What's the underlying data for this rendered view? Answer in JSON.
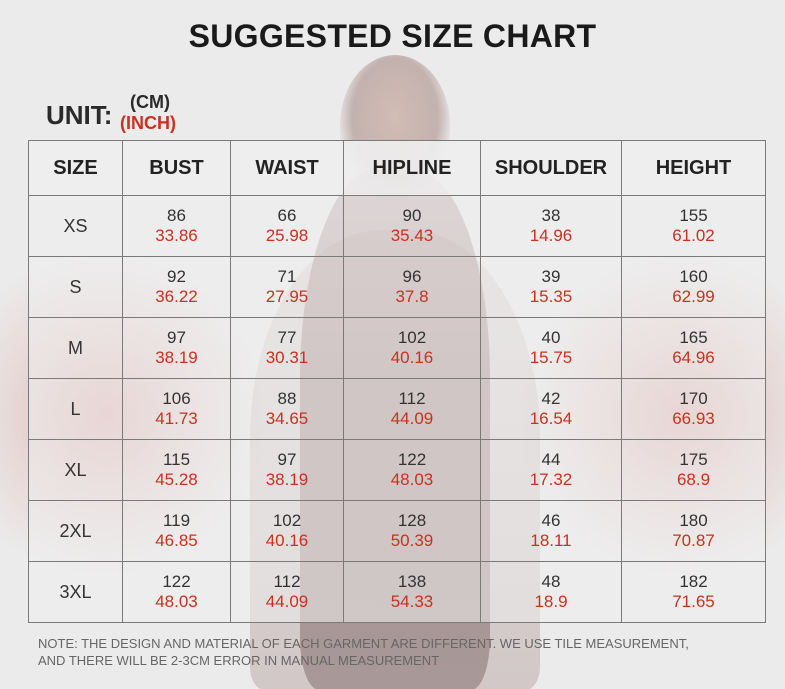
{
  "title": "SUGGESTED SIZE CHART",
  "unit": {
    "label": "UNIT:",
    "cm": "(CM)",
    "inch": "(INCH)"
  },
  "colors": {
    "inch_text": "#c8321e",
    "cm_text": "#333333",
    "grid_line": "#7a7a7a"
  },
  "table": {
    "headers": [
      "SIZE",
      "BUST",
      "WAIST",
      "HIPLINE",
      "SHOULDER",
      "HEIGHT"
    ],
    "rows": [
      {
        "size": "XS",
        "values": [
          {
            "cm": "86",
            "inch": "33.86"
          },
          {
            "cm": "66",
            "inch": "25.98"
          },
          {
            "cm": "90",
            "inch": "35.43"
          },
          {
            "cm": "38",
            "inch": "14.96"
          },
          {
            "cm": "155",
            "inch": "61.02"
          }
        ]
      },
      {
        "size": "S",
        "values": [
          {
            "cm": "92",
            "inch": "36.22"
          },
          {
            "cm": "71",
            "inch": "27.95"
          },
          {
            "cm": "96",
            "inch": "37.8"
          },
          {
            "cm": "39",
            "inch": "15.35"
          },
          {
            "cm": "160",
            "inch": "62.99"
          }
        ]
      },
      {
        "size": "M",
        "values": [
          {
            "cm": "97",
            "inch": "38.19"
          },
          {
            "cm": "77",
            "inch": "30.31"
          },
          {
            "cm": "102",
            "inch": "40.16"
          },
          {
            "cm": "40",
            "inch": "15.75"
          },
          {
            "cm": "165",
            "inch": "64.96"
          }
        ]
      },
      {
        "size": "L",
        "values": [
          {
            "cm": "106",
            "inch": "41.73"
          },
          {
            "cm": "88",
            "inch": "34.65"
          },
          {
            "cm": "112",
            "inch": "44.09"
          },
          {
            "cm": "42",
            "inch": "16.54"
          },
          {
            "cm": "170",
            "inch": "66.93"
          }
        ]
      },
      {
        "size": "XL",
        "values": [
          {
            "cm": "115",
            "inch": "45.28"
          },
          {
            "cm": "97",
            "inch": "38.19"
          },
          {
            "cm": "122",
            "inch": "48.03"
          },
          {
            "cm": "44",
            "inch": "17.32"
          },
          {
            "cm": "175",
            "inch": "68.9"
          }
        ]
      },
      {
        "size": "2XL",
        "values": [
          {
            "cm": "119",
            "inch": "46.85"
          },
          {
            "cm": "102",
            "inch": "40.16"
          },
          {
            "cm": "128",
            "inch": "50.39"
          },
          {
            "cm": "46",
            "inch": "18.11"
          },
          {
            "cm": "180",
            "inch": "70.87"
          }
        ]
      },
      {
        "size": "3XL",
        "values": [
          {
            "cm": "122",
            "inch": "48.03"
          },
          {
            "cm": "112",
            "inch": "44.09"
          },
          {
            "cm": "138",
            "inch": "54.33"
          },
          {
            "cm": "48",
            "inch": "18.9"
          },
          {
            "cm": "182",
            "inch": "71.65"
          }
        ]
      }
    ]
  },
  "note": {
    "line1": "NOTE: THE DESIGN AND MATERIAL OF EACH GARMENT ARE DIFFERENT. WE USE TILE MEASUREMENT,",
    "line2": "AND THERE WILL BE 2-3CM ERROR IN MANUAL MEASUREMENT"
  }
}
